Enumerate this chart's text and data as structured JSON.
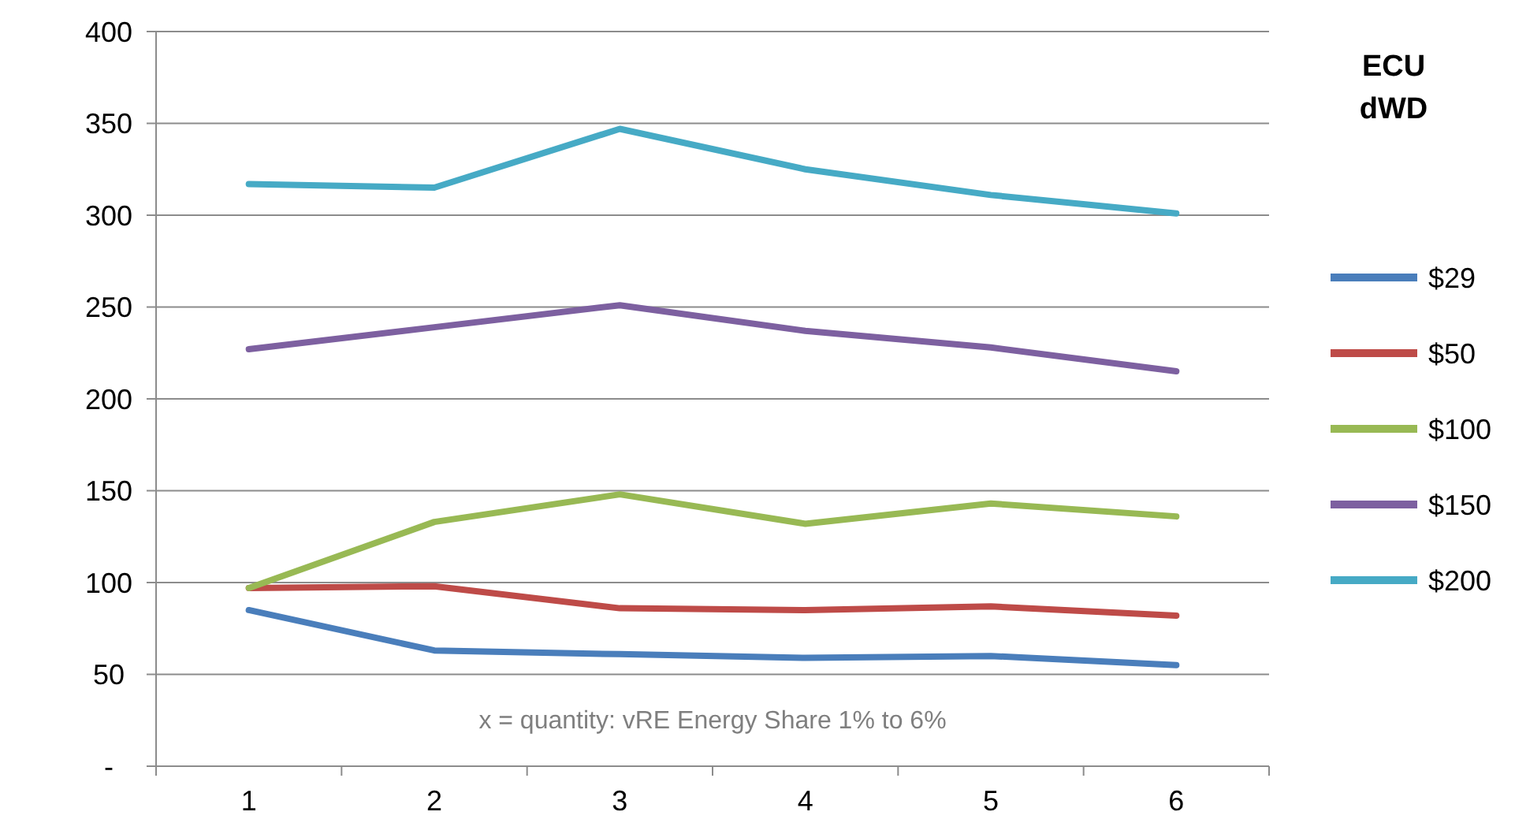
{
  "chart_data": {
    "type": "line",
    "categories": [
      "1",
      "2",
      "3",
      "4",
      "5",
      "6"
    ],
    "ylim": [
      0,
      400
    ],
    "yticks": [
      {
        "value": 0,
        "label": "-"
      },
      50,
      100,
      150,
      200,
      250,
      300,
      350,
      400
    ],
    "grid": "y",
    "legend": "right",
    "legend_title": "ECU dWD",
    "marker": "none",
    "line_style": "solid",
    "annotations": [
      "x = quantity: vRE Energy Share 1% to 6%"
    ],
    "series": [
      {
        "name": "$29",
        "color": "#4a7ebb",
        "values": [
          85,
          63,
          61,
          59,
          60,
          55
        ]
      },
      {
        "name": "$50",
        "color": "#be4b48",
        "values": [
          97,
          98,
          86,
          85,
          87,
          82
        ]
      },
      {
        "name": "$100",
        "color": "#98b954",
        "values": [
          97,
          133,
          148,
          132,
          143,
          136
        ]
      },
      {
        "name": "$150",
        "color": "#7d60a0",
        "values": [
          227,
          239,
          251,
          237,
          228,
          215
        ]
      },
      {
        "name": "$200",
        "color": "#46aac5",
        "values": [
          317,
          315,
          347,
          325,
          311,
          301
        ]
      }
    ]
  }
}
